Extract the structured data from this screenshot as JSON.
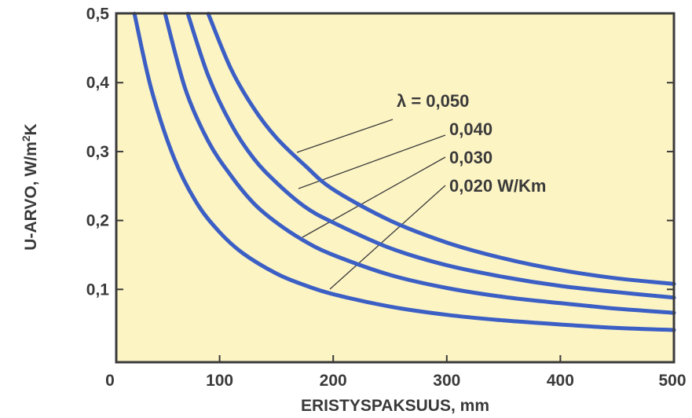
{
  "chart_data": {
    "type": "line",
    "title": "",
    "xlabel": "ERISTYSPAKSUUS, mm",
    "ylabel_main": "U-ARVO, W/m",
    "ylabel_sup": "2",
    "ylabel_tail": "K",
    "xlim": [
      0,
      500
    ],
    "ylim": [
      0,
      0.5
    ],
    "x_ticks": [
      0,
      100,
      200,
      300,
      400,
      500
    ],
    "x_tick_labels": [
      "0",
      "100",
      "200",
      "300",
      "400",
      "500"
    ],
    "y_ticks": [
      0.1,
      0.2,
      0.3,
      0.4,
      0.5
    ],
    "y_tick_labels": [
      "0,1",
      "0,2",
      "0,3",
      "0,4",
      "0,5"
    ],
    "grid": false,
    "series": [
      {
        "name": "λ = 0,050",
        "lambda": 0.05,
        "x": [
          90,
          110,
          130,
          150,
          175,
          200,
          250,
          300,
          350,
          400,
          450,
          500
        ],
        "y": [
          0.5,
          0.42,
          0.363,
          0.32,
          0.28,
          0.245,
          0.2,
          0.168,
          0.145,
          0.128,
          0.116,
          0.108
        ]
      },
      {
        "name": "0,040",
        "lambda": 0.04,
        "x": [
          72,
          90,
          110,
          130,
          150,
          175,
          200,
          250,
          300,
          350,
          400,
          450,
          500
        ],
        "y": [
          0.5,
          0.41,
          0.34,
          0.29,
          0.255,
          0.22,
          0.197,
          0.16,
          0.135,
          0.118,
          0.105,
          0.096,
          0.088
        ]
      },
      {
        "name": "0,030",
        "lambda": 0.03,
        "x": [
          52,
          70,
          90,
          110,
          130,
          150,
          175,
          200,
          250,
          300,
          350,
          400,
          450,
          500
        ],
        "y": [
          0.5,
          0.39,
          0.315,
          0.265,
          0.225,
          0.197,
          0.17,
          0.15,
          0.121,
          0.102,
          0.089,
          0.08,
          0.072,
          0.066
        ]
      },
      {
        "name": "0,020 W/Km",
        "lambda": 0.02,
        "x": [
          25,
          40,
          60,
          80,
          100,
          120,
          150,
          175,
          200,
          250,
          300,
          350,
          400,
          450,
          500
        ],
        "y": [
          0.5,
          0.39,
          0.29,
          0.225,
          0.183,
          0.153,
          0.123,
          0.106,
          0.093,
          0.075,
          0.063,
          0.055,
          0.049,
          0.044,
          0.041
        ]
      }
    ],
    "annotations": [
      "λ = 0,050",
      "0,040",
      "0,030",
      "0,020 W/Km"
    ]
  },
  "colors": {
    "plot_background": "#fdf4c4",
    "curve": "#3b5fc4",
    "frame": "#3a3a3a",
    "text": "#3a3a3a"
  }
}
